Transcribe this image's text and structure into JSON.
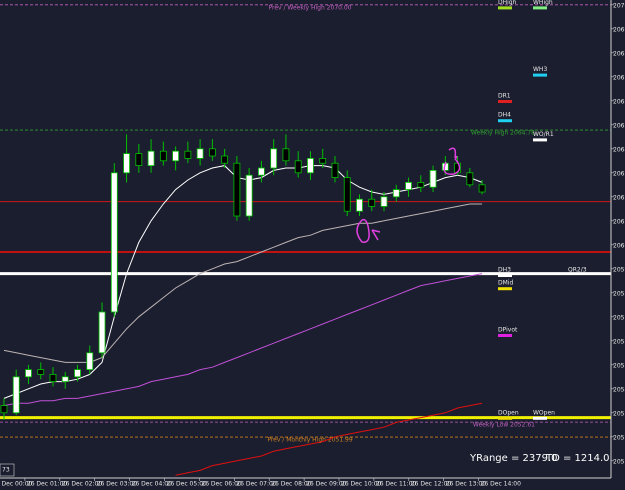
{
  "chart_data": {
    "type": "candlestick",
    "ylim": [
      2050.2,
      2070.2
    ],
    "yticks": [
      {
        "value": 2070,
        "label": "2070.0"
      },
      {
        "value": 2069,
        "label": "2069.0"
      },
      {
        "value": 2068,
        "label": "2068.0"
      },
      {
        "value": 2067,
        "label": "2067.0"
      },
      {
        "value": 2066,
        "label": "2066.0"
      },
      {
        "value": 2065,
        "label": "2065.0"
      },
      {
        "value": 2064,
        "label": "2064.0"
      },
      {
        "value": 2063,
        "label": "2063.0"
      },
      {
        "value": 2062,
        "label": "2062.0"
      },
      {
        "value": 2061,
        "label": "2061.0"
      },
      {
        "value": 2060,
        "label": "2060.0"
      },
      {
        "value": 2059,
        "label": "2059.0"
      },
      {
        "value": 2058,
        "label": "2058.0"
      },
      {
        "value": 2057,
        "label": "2057.0"
      },
      {
        "value": 2056,
        "label": "2056.0"
      },
      {
        "value": 2055,
        "label": "2055.0"
      },
      {
        "value": 2054,
        "label": "2054.0"
      },
      {
        "value": 2053,
        "label": "2053.0"
      },
      {
        "value": 2052,
        "label": "2052.0"
      },
      {
        "value": 2051,
        "label": "2051.0"
      }
    ],
    "x_labels": [
      "26 Dec 00:00",
      "26 Dec 01:00",
      "26 Dec 02:00",
      "26 Dec 03:00",
      "26 Dec 04:00",
      "26 Dec 05:00",
      "26 Dec 06:00",
      "26 Dec 07:00",
      "26 Dec 08:00",
      "26 Dec 09:00",
      "26 Dec 10:00",
      "26 Dec 11:00",
      "26 Dec 12:00",
      "26 Dec 13:00",
      "26 Dec 14:00"
    ],
    "bull_color": "#ffffff",
    "bear_color": "#000000",
    "wick_color": "#00c000",
    "open": [
      2053.3,
      2053.0,
      2054.5,
      2054.8,
      2054.6,
      2054.3,
      2054.5,
      2054.8,
      2055.5,
      2057.2,
      2063.0,
      2063.8,
      2063.3,
      2063.9,
      2063.5,
      2063.9,
      2063.6,
      2064.0,
      2063.7,
      2063.4,
      2061.2,
      2062.9,
      2063.2,
      2064.0,
      2063.5,
      2063.0,
      2063.6,
      2063.4,
      2062.8,
      2061.4,
      2061.9,
      2061.6,
      2062.0,
      2062.3,
      2062.6,
      2062.4,
      2063.1,
      2063.4,
      2063.0,
      2062.5
    ],
    "high": [
      2053.6,
      2054.8,
      2055.0,
      2055.1,
      2054.9,
      2054.7,
      2055.0,
      2055.8,
      2057.6,
      2063.4,
      2064.6,
      2064.2,
      2064.4,
      2064.3,
      2064.1,
      2064.3,
      2064.4,
      2064.4,
      2064.0,
      2063.7,
      2063.2,
      2063.5,
      2064.4,
      2064.6,
      2063.9,
      2063.9,
      2064.0,
      2063.7,
      2063.1,
      2062.1,
      2062.3,
      2062.2,
      2062.5,
      2062.8,
      2062.9,
      2063.3,
      2063.7,
      2063.7,
      2063.2,
      2062.7
    ],
    "low": [
      2052.7,
      2052.9,
      2054.2,
      2054.4,
      2054.1,
      2054.0,
      2054.3,
      2054.6,
      2055.3,
      2057.0,
      2062.6,
      2063.0,
      2063.0,
      2063.3,
      2063.1,
      2063.4,
      2063.3,
      2063.5,
      2063.2,
      2061.0,
      2061.0,
      2062.6,
      2062.9,
      2063.3,
      2062.8,
      2062.7,
      2063.2,
      2062.6,
      2061.2,
      2061.2,
      2061.4,
      2061.4,
      2061.8,
      2062.0,
      2062.2,
      2062.2,
      2062.9,
      2062.9,
      2062.4,
      2062.1
    ],
    "close": [
      2053.0,
      2054.5,
      2054.8,
      2054.6,
      2054.3,
      2054.5,
      2054.8,
      2055.5,
      2057.2,
      2063.0,
      2063.8,
      2063.3,
      2063.9,
      2063.5,
      2063.9,
      2063.6,
      2064.0,
      2063.7,
      2063.4,
      2061.2,
      2062.9,
      2063.2,
      2064.0,
      2063.5,
      2063.0,
      2063.6,
      2063.4,
      2062.8,
      2061.4,
      2061.9,
      2061.6,
      2062.0,
      2062.3,
      2062.6,
      2062.4,
      2063.1,
      2063.4,
      2063.0,
      2062.5,
      2062.2
    ],
    "series": [
      {
        "color": "#ffffff",
        "values": [
          2053.6,
          2053.8,
          2054.0,
          2054.2,
          2054.3,
          2054.3,
          2054.4,
          2054.6,
          2055.1,
          2057.0,
          2058.8,
          2060.1,
          2061.0,
          2061.7,
          2062.3,
          2062.7,
          2063.0,
          2063.2,
          2063.3,
          2062.8,
          2062.7,
          2062.8,
          2063.1,
          2063.2,
          2063.2,
          2063.3,
          2063.3,
          2063.2,
          2062.7,
          2062.4,
          2062.2,
          2062.1,
          2062.2,
          2062.3,
          2062.4,
          2062.6,
          2062.8,
          2062.9,
          2062.8,
          2062.6
        ]
      },
      {
        "color": "#bdb4b4",
        "values": [
          2055.6,
          2055.5,
          2055.4,
          2055.3,
          2055.2,
          2055.1,
          2055.1,
          2055.1,
          2055.3,
          2055.9,
          2056.5,
          2057.0,
          2057.4,
          2057.8,
          2058.2,
          2058.5,
          2058.8,
          2059.0,
          2059.2,
          2059.3,
          2059.5,
          2059.7,
          2059.9,
          2060.1,
          2060.3,
          2060.4,
          2060.6,
          2060.7,
          2060.8,
          2060.9,
          2060.9,
          2061.0,
          2061.1,
          2061.2,
          2061.3,
          2061.4,
          2061.5,
          2061.6,
          2061.7,
          2061.7
        ]
      },
      {
        "color": "#c050d8",
        "values": [
          2053.3,
          2053.4,
          2053.4,
          2053.5,
          2053.5,
          2053.6,
          2053.6,
          2053.7,
          2053.8,
          2053.9,
          2054.0,
          2054.1,
          2054.3,
          2054.4,
          2054.5,
          2054.6,
          2054.8,
          2054.9,
          2055.1,
          2055.3,
          2055.5,
          2055.7,
          2055.9,
          2056.1,
          2056.3,
          2056.5,
          2056.7,
          2056.9,
          2057.1,
          2057.3,
          2057.5,
          2057.7,
          2057.9,
          2058.1,
          2058.3,
          2058.4,
          2058.5,
          2058.6,
          2058.7,
          2058.8
        ]
      },
      {
        "color": "#e01010",
        "values": [
          null,
          null,
          null,
          null,
          null,
          null,
          null,
          null,
          null,
          null,
          null,
          null,
          null,
          null,
          2050.4,
          2050.5,
          2050.6,
          2050.8,
          2050.9,
          2051.0,
          2051.1,
          2051.2,
          2051.4,
          2051.5,
          2051.6,
          2051.7,
          2051.8,
          2052.0,
          2052.1,
          2052.2,
          2052.3,
          2052.4,
          2052.6,
          2052.7,
          2052.8,
          2052.9,
          2053.0,
          2053.2,
          2053.3,
          2053.4
        ]
      }
    ],
    "hlines": [
      {
        "value": 2061.8,
        "color": "#d01818",
        "width": 1
      },
      {
        "value": 2059.7,
        "color": "#c01010",
        "width": 2
      },
      {
        "value": 2058.8,
        "color": "#ffffff",
        "width": 3
      },
      {
        "value": 2052.8,
        "color": "#f0f000",
        "width": 3
      }
    ],
    "levels": [
      {
        "label": "Prev / Weekly High 2070.00",
        "value": 2070.0,
        "color": "#c060c0",
        "label_position": "center"
      },
      {
        "label": "Weekly High 2064.78",
        "value": 2064.78,
        "color": "#30a030",
        "label_position": "right"
      },
      {
        "label": "Weekly Low 2052.61",
        "value": 2052.61,
        "color": "#c060c0",
        "label_position": "right"
      },
      {
        "label": "Prev / Monthly High 2051.99",
        "value": 2051.99,
        "color": "#d08020",
        "label_position": "center"
      }
    ],
    "daily_levels": [
      {
        "label": "DHigh",
        "value": 2070.1,
        "color": "#a0e020"
      },
      {
        "label": "DR1",
        "value": 2066.2,
        "color": "#e02020"
      },
      {
        "label": "DH4",
        "value": 2065.4,
        "color": "#20d0f0"
      },
      {
        "label": "DH3",
        "value": 2058.95,
        "color": "#ffffff"
      },
      {
        "label": "DMid",
        "value": 2058.4,
        "color": "#f0e000"
      },
      {
        "label": "DPivot",
        "value": 2056.45,
        "color": "#e020e0"
      },
      {
        "label": "DOpen",
        "value": 2053.0,
        "color": "#f0e000"
      }
    ],
    "weekly_levels": [
      {
        "label": "WHigh",
        "value": 2070.1,
        "color": "#80f080"
      },
      {
        "label": "WH3",
        "value": 2067.3,
        "color": "#20d0f0"
      },
      {
        "label": "WO/R1",
        "value": 2064.6,
        "color": "#ffffff"
      },
      {
        "label": "WOpen",
        "value": 2053.0,
        "color": "#ffffff"
      }
    ],
    "quarterly_levels": [
      {
        "label": "QR2/3",
        "value": 2058.95
      }
    ],
    "footer": [
      "YRange = 2379.0",
      "TD = 1214.0"
    ],
    "corner_label": "73"
  }
}
